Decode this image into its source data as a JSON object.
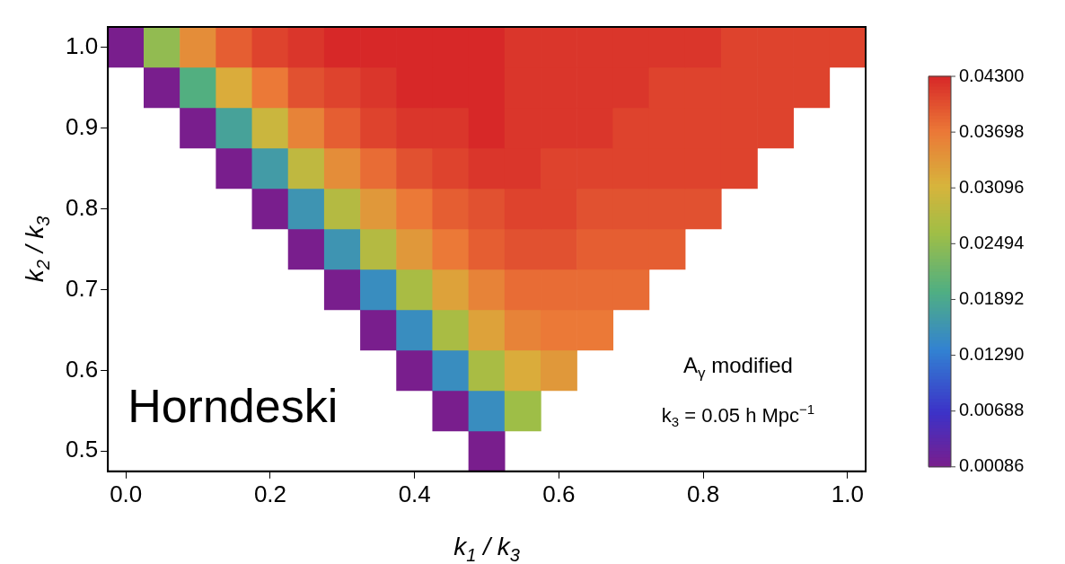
{
  "chart_data": {
    "type": "heatmap",
    "grid": false,
    "legend": false,
    "xlabel": "k$_{1}$ / k$_{3}$",
    "ylabel": "k$_{2}$ / k$_{3}$",
    "categories": [
      "0.0",
      null,
      null,
      null,
      "0.2",
      null,
      null,
      null,
      "0.4",
      null,
      null,
      null,
      "0.6",
      null,
      null,
      null,
      "0.8",
      null,
      null,
      null,
      "1.0"
    ],
    "y_categories": [
      "1.0",
      null,
      "0.9",
      null,
      "0.8",
      null,
      "0.7",
      null,
      "0.6",
      null,
      "0.5"
    ],
    "clim": [
      0.00086,
      0.043
    ],
    "cticks": [
      {
        "value": 0.00086,
        "label": "0.00086"
      },
      {
        "value": 0.00688,
        "label": "0.00688"
      },
      {
        "value": 0.0129,
        "label": "0.01290"
      },
      {
        "value": 0.01892,
        "label": "0.01892"
      },
      {
        "value": 0.02494,
        "label": "0.02494"
      },
      {
        "value": 0.03096,
        "label": "0.03096"
      },
      {
        "value": 0.03698,
        "label": "0.03698"
      },
      {
        "value": 0.043,
        "label": "0.04300"
      }
    ],
    "annotations": [
      "Horndeski",
      "A$_{γ}$ modified",
      "k$_{3}$ = 0.05 h Mpc$^{−1}$"
    ],
    "cells": [
      [
        0.001,
        0.025,
        0.035,
        0.039,
        0.041,
        0.042,
        0.043,
        0.043,
        0.043,
        0.043,
        0.043,
        0.042,
        0.042,
        0.042,
        0.042,
        0.042,
        0.042,
        0.041,
        0.041,
        0.041,
        0.041
      ],
      [
        null,
        0.001,
        0.02,
        0.032,
        0.037,
        0.04,
        0.041,
        0.042,
        0.043,
        0.043,
        0.043,
        0.042,
        0.042,
        0.042,
        0.042,
        0.041,
        0.041,
        0.041,
        0.041,
        0.041,
        null
      ],
      [
        null,
        null,
        0.001,
        0.018,
        0.03,
        0.036,
        0.039,
        0.041,
        0.042,
        0.042,
        0.043,
        0.042,
        0.042,
        0.042,
        0.041,
        0.041,
        0.041,
        0.041,
        0.041,
        null,
        null
      ],
      [
        null,
        null,
        null,
        0.001,
        0.017,
        0.029,
        0.035,
        0.038,
        0.04,
        0.041,
        0.042,
        0.042,
        0.041,
        0.041,
        0.041,
        0.041,
        0.041,
        0.041,
        null,
        null,
        null
      ],
      [
        null,
        null,
        null,
        null,
        0.001,
        0.016,
        0.028,
        0.034,
        0.037,
        0.039,
        0.04,
        0.041,
        0.041,
        0.04,
        0.04,
        0.04,
        0.04,
        null,
        null,
        null,
        null
      ],
      [
        null,
        null,
        null,
        null,
        null,
        0.001,
        0.016,
        0.028,
        0.034,
        0.037,
        0.039,
        0.04,
        0.04,
        0.039,
        0.039,
        0.039,
        null,
        null,
        null,
        null,
        null
      ],
      [
        null,
        null,
        null,
        null,
        null,
        null,
        0.001,
        0.015,
        0.027,
        0.033,
        0.036,
        0.038,
        0.038,
        0.038,
        0.038,
        null,
        null,
        null,
        null,
        null,
        null
      ],
      [
        null,
        null,
        null,
        null,
        null,
        null,
        null,
        0.001,
        0.015,
        0.027,
        0.033,
        0.036,
        0.037,
        0.037,
        null,
        null,
        null,
        null,
        null,
        null,
        null
      ],
      [
        null,
        null,
        null,
        null,
        null,
        null,
        null,
        null,
        0.001,
        0.015,
        0.027,
        0.032,
        0.034,
        null,
        null,
        null,
        null,
        null,
        null,
        null,
        null
      ],
      [
        null,
        null,
        null,
        null,
        null,
        null,
        null,
        null,
        null,
        0.001,
        0.015,
        0.026,
        null,
        null,
        null,
        null,
        null,
        null,
        null,
        null,
        null
      ],
      [
        null,
        null,
        null,
        null,
        null,
        null,
        null,
        null,
        null,
        null,
        0.001,
        null,
        null,
        null,
        null,
        null,
        null,
        null,
        null,
        null,
        null
      ]
    ]
  }
}
